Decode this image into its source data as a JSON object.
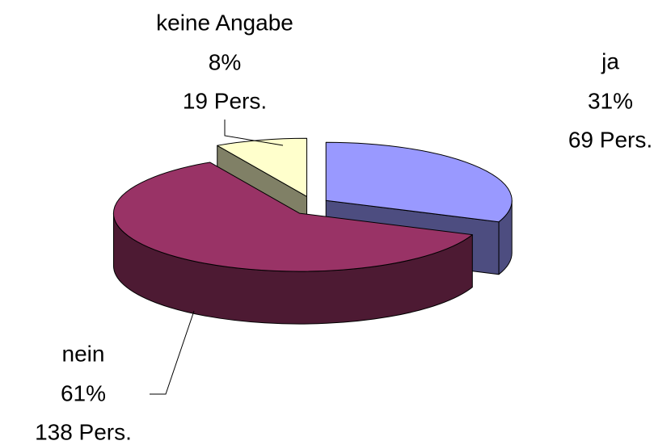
{
  "chart_data": {
    "type": "pie3d",
    "categories": [
      "ja",
      "nein",
      "keine Angabe"
    ],
    "values": [
      31,
      61,
      8
    ],
    "value_labels": [
      "31%",
      "61%",
      "8%"
    ],
    "persons": [
      69,
      138,
      19
    ],
    "person_labels": [
      "69 Pers.",
      "138 Pers.",
      "19 Pers."
    ],
    "colors": [
      "#9999ff",
      "#993366",
      "#ffffcc"
    ],
    "side_colors": [
      "#4d4d80",
      "#4d1a33",
      "#808066"
    ]
  }
}
